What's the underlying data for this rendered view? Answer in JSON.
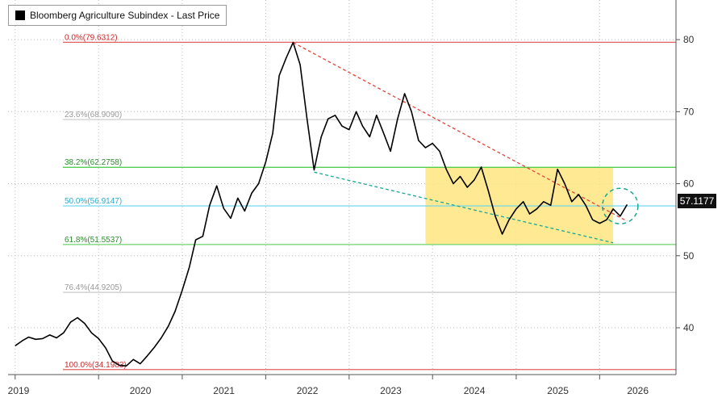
{
  "legend": {
    "label": "Bloomberg Agriculture Subindex - Last Price",
    "swatch_color": "#000000"
  },
  "last_price_tag": "57.1177",
  "chart_data": {
    "type": "line",
    "title": "",
    "series": [
      {
        "name": "Bloomberg Agriculture Subindex - Last Price",
        "color": "#000000",
        "points": [
          [
            "2019-01-01",
            37.5
          ],
          [
            "2019-02-01",
            38.2
          ],
          [
            "2019-03-01",
            38.7
          ],
          [
            "2019-04-01",
            38.4
          ],
          [
            "2019-05-01",
            38.5
          ],
          [
            "2019-06-01",
            39.0
          ],
          [
            "2019-07-01",
            38.6
          ],
          [
            "2019-08-01",
            39.3
          ],
          [
            "2019-09-01",
            40.8
          ],
          [
            "2019-10-01",
            41.4
          ],
          [
            "2019-11-01",
            40.6
          ],
          [
            "2019-12-01",
            39.3
          ],
          [
            "2020-01-01",
            38.5
          ],
          [
            "2020-02-01",
            37.2
          ],
          [
            "2020-03-01",
            35.4
          ],
          [
            "2020-04-01",
            34.8
          ],
          [
            "2020-05-01",
            34.7
          ],
          [
            "2020-06-01",
            35.6
          ],
          [
            "2020-07-01",
            35.0
          ],
          [
            "2020-08-01",
            36.1
          ],
          [
            "2020-09-01",
            37.3
          ],
          [
            "2020-10-01",
            38.6
          ],
          [
            "2020-11-01",
            40.2
          ],
          [
            "2020-12-01",
            42.3
          ],
          [
            "2021-01-01",
            45.2
          ],
          [
            "2021-02-01",
            48.4
          ],
          [
            "2021-03-01",
            52.2
          ],
          [
            "2021-04-01",
            52.7
          ],
          [
            "2021-05-01",
            57.0
          ],
          [
            "2021-06-01",
            59.7
          ],
          [
            "2021-07-01",
            56.6
          ],
          [
            "2021-08-01",
            55.2
          ],
          [
            "2021-09-01",
            58.0
          ],
          [
            "2021-10-01",
            56.2
          ],
          [
            "2021-11-01",
            58.7
          ],
          [
            "2021-12-01",
            60.0
          ],
          [
            "2022-01-01",
            63.0
          ],
          [
            "2022-02-01",
            67.0
          ],
          [
            "2022-03-01",
            75.0
          ],
          [
            "2022-04-01",
            77.5
          ],
          [
            "2022-05-01",
            79.6
          ],
          [
            "2022-06-01",
            76.5
          ],
          [
            "2022-07-01",
            69.0
          ],
          [
            "2022-08-01",
            61.9
          ],
          [
            "2022-09-01",
            66.5
          ],
          [
            "2022-10-01",
            69.0
          ],
          [
            "2022-11-01",
            69.5
          ],
          [
            "2022-12-01",
            68.0
          ],
          [
            "2023-01-01",
            67.5
          ],
          [
            "2023-02-01",
            70.0
          ],
          [
            "2023-03-01",
            68.0
          ],
          [
            "2023-04-01",
            66.5
          ],
          [
            "2023-05-01",
            69.5
          ],
          [
            "2023-06-01",
            67.0
          ],
          [
            "2023-07-01",
            64.5
          ],
          [
            "2023-08-01",
            69.0
          ],
          [
            "2023-09-01",
            72.5
          ],
          [
            "2023-10-01",
            70.0
          ],
          [
            "2023-11-01",
            66.0
          ],
          [
            "2023-12-01",
            65.0
          ],
          [
            "2024-01-01",
            65.6
          ],
          [
            "2024-02-01",
            64.5
          ],
          [
            "2024-03-01",
            62.0
          ],
          [
            "2024-04-01",
            60.0
          ],
          [
            "2024-05-01",
            61.0
          ],
          [
            "2024-06-01",
            59.5
          ],
          [
            "2024-07-01",
            60.5
          ],
          [
            "2024-08-01",
            62.3
          ],
          [
            "2024-09-01",
            59.0
          ],
          [
            "2024-10-01",
            55.5
          ],
          [
            "2024-11-01",
            53.0
          ],
          [
            "2024-12-01",
            55.0
          ],
          [
            "2025-01-01",
            56.5
          ],
          [
            "2025-02-01",
            57.5
          ],
          [
            "2025-03-01",
            55.8
          ],
          [
            "2025-04-01",
            56.5
          ],
          [
            "2025-05-01",
            57.5
          ],
          [
            "2025-06-01",
            57.0
          ],
          [
            "2025-07-01",
            62.0
          ],
          [
            "2025-08-01",
            60.0
          ],
          [
            "2025-09-01",
            57.5
          ],
          [
            "2025-10-01",
            58.5
          ],
          [
            "2025-11-01",
            57.0
          ],
          [
            "2025-12-01",
            55.0
          ],
          [
            "2026-01-01",
            54.5
          ],
          [
            "2026-02-01",
            55.0
          ],
          [
            "2026-03-01",
            56.5
          ],
          [
            "2026-04-01",
            55.5
          ],
          [
            "2026-05-01",
            57.1
          ]
        ]
      }
    ],
    "xlim": [
      "2018-12-01",
      "2026-12-01"
    ],
    "ylim": [
      33.5,
      85.5
    ],
    "x_ticks": [
      {
        "label": "2019",
        "x": "2019-01-01"
      },
      {
        "label": "2020",
        "x": "2020-01-01"
      },
      {
        "label": "2021",
        "x": "2021-01-01"
      },
      {
        "label": "2022",
        "x": "2022-01-01"
      },
      {
        "label": "2023",
        "x": "2023-01-01"
      },
      {
        "label": "2024",
        "x": "2024-01-01"
      },
      {
        "label": "2025",
        "x": "2025-01-01"
      },
      {
        "label": "2026",
        "x": "2026-01-01"
      }
    ],
    "y_ticks": [
      40,
      50,
      60,
      70,
      80
    ],
    "grid": true,
    "fib_levels": [
      {
        "label": "0.0%(79.6312)",
        "value": 79.6312,
        "color": "#e06060",
        "text_color": "#cc2a2a"
      },
      {
        "label": "23.6%(68.9090)",
        "value": 68.909,
        "color": "#c8c8c8",
        "text_color": "#9a9a9a"
      },
      {
        "label": "38.2%(62.2758)",
        "value": 62.2758,
        "color": "#3fc93f",
        "text_color": "#2e8b2e"
      },
      {
        "label": "50.0%(56.9147)",
        "value": 56.9147,
        "color": "#62d4f0",
        "text_color": "#2fa9c9"
      },
      {
        "label": "61.8%(51.5537)",
        "value": 51.5537,
        "color": "#6fd36f",
        "text_color": "#2e8b2e"
      },
      {
        "label": "76.4%(44.9205)",
        "value": 44.9205,
        "color": "#c8c8c8",
        "text_color": "#9a9a9a"
      },
      {
        "label": "100.0%(34.1983)",
        "value": 34.1983,
        "color": "#e06060",
        "text_color": "#cc2a2a"
      }
    ],
    "shaded_region": {
      "x_start": "2023-12-01",
      "x_end": "2026-03-01",
      "y_start": 51.5537,
      "y_end": 62.2758,
      "color": "#ffe680"
    },
    "trendlines": [
      {
        "from": [
          "2022-05-01",
          79.6
        ],
        "to": [
          "2026-05-01",
          54.8
        ],
        "color": "#e0463c",
        "dashed": true
      },
      {
        "from": [
          "2022-08-01",
          61.6
        ],
        "to": [
          "2026-03-01",
          51.8
        ],
        "color": "#1aa890",
        "dashed": true
      }
    ],
    "highlight_circle": {
      "x": "2026-04-01",
      "y": 56.9,
      "color": "#1aa890"
    },
    "last_value": 57.1177
  }
}
